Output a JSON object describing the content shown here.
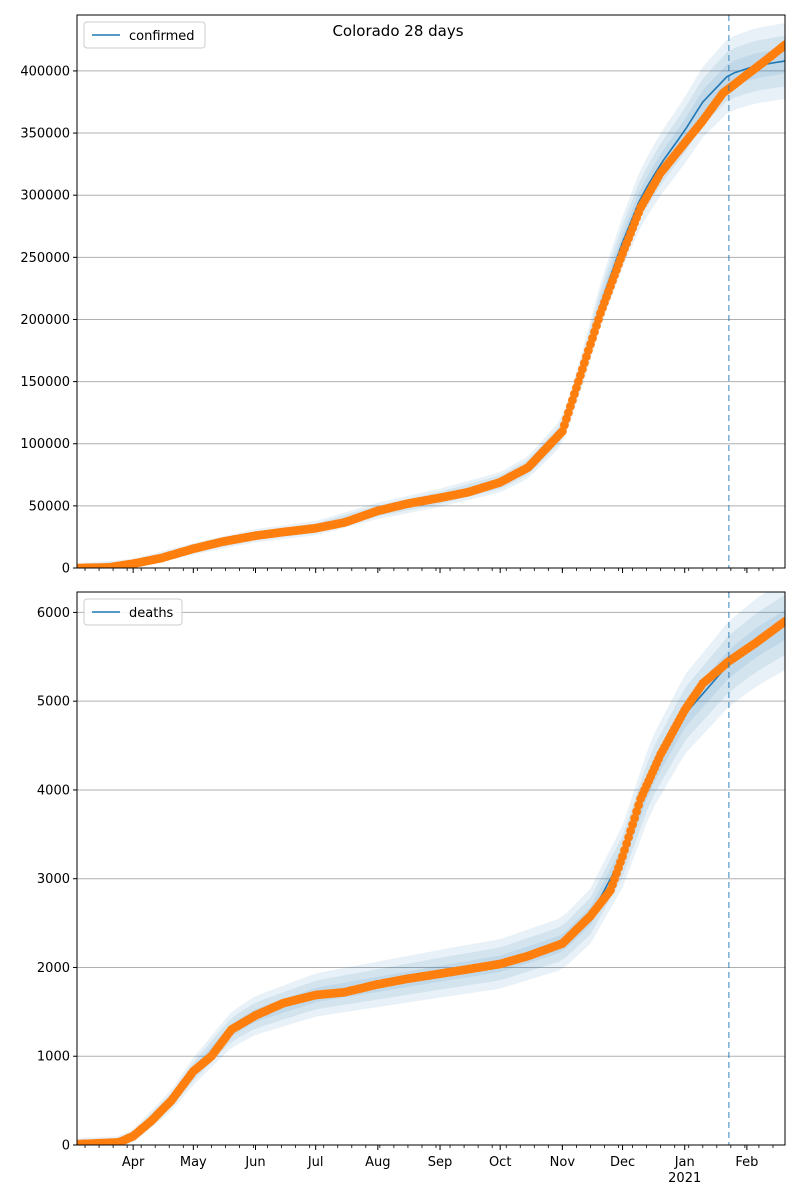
{
  "figure": {
    "title": "Colorado 28 days"
  },
  "chart_data": [
    {
      "type": "line",
      "legend": {
        "label": "confirmed",
        "placement": "upper-left"
      },
      "grid": "y",
      "ylim": [
        0,
        445000
      ],
      "yticks": [
        0,
        50000,
        100000,
        150000,
        200000,
        250000,
        300000,
        350000,
        400000
      ],
      "ytick_labels": [
        "0",
        "50000",
        "100000",
        "150000",
        "200000",
        "250000",
        "300000",
        "350000",
        "400000"
      ],
      "xlim": [
        "2020-03-04",
        "2021-02-20"
      ],
      "forecast_start": "2021-01-23",
      "observed": [
        {
          "x": "2020-03-05",
          "y": 0
        },
        {
          "x": "2020-03-20",
          "y": 500
        },
        {
          "x": "2020-04-01",
          "y": 3500
        },
        {
          "x": "2020-04-15",
          "y": 8000
        },
        {
          "x": "2020-05-01",
          "y": 15500
        },
        {
          "x": "2020-05-15",
          "y": 21000
        },
        {
          "x": "2020-06-01",
          "y": 26000
        },
        {
          "x": "2020-06-15",
          "y": 29000
        },
        {
          "x": "2020-07-01",
          "y": 32000
        },
        {
          "x": "2020-07-15",
          "y": 36500
        },
        {
          "x": "2020-08-01",
          "y": 46000
        },
        {
          "x": "2020-08-15",
          "y": 51500
        },
        {
          "x": "2020-09-01",
          "y": 56500
        },
        {
          "x": "2020-09-15",
          "y": 61000
        },
        {
          "x": "2020-10-01",
          "y": 69000
        },
        {
          "x": "2020-10-15",
          "y": 81000
        },
        {
          "x": "2020-11-01",
          "y": 110000
        },
        {
          "x": "2020-11-10",
          "y": 155000
        },
        {
          "x": "2020-11-20",
          "y": 205000
        },
        {
          "x": "2020-12-01",
          "y": 253000
        },
        {
          "x": "2020-12-10",
          "y": 290000
        },
        {
          "x": "2020-12-20",
          "y": 318000
        },
        {
          "x": "2021-01-01",
          "y": 342000
        },
        {
          "x": "2021-01-10",
          "y": 360000
        },
        {
          "x": "2021-01-20",
          "y": 382000
        },
        {
          "x": "2021-02-01",
          "y": 397000
        },
        {
          "x": "2021-02-10",
          "y": 408000
        },
        {
          "x": "2021-02-20",
          "y": 421000
        }
      ],
      "model": [
        {
          "x": "2020-03-04",
          "y": 0
        },
        {
          "x": "2020-04-01",
          "y": 3500
        },
        {
          "x": "2020-05-01",
          "y": 15500
        },
        {
          "x": "2020-06-01",
          "y": 26000
        },
        {
          "x": "2020-07-01",
          "y": 32000
        },
        {
          "x": "2020-08-01",
          "y": 46000
        },
        {
          "x": "2020-09-01",
          "y": 56500
        },
        {
          "x": "2020-10-01",
          "y": 69000
        },
        {
          "x": "2020-10-15",
          "y": 81000
        },
        {
          "x": "2020-11-01",
          "y": 110000
        },
        {
          "x": "2020-11-10",
          "y": 155000
        },
        {
          "x": "2020-11-20",
          "y": 212000
        },
        {
          "x": "2020-12-01",
          "y": 262000
        },
        {
          "x": "2020-12-10",
          "y": 298000
        },
        {
          "x": "2020-12-20",
          "y": 325000
        },
        {
          "x": "2021-01-01",
          "y": 352000
        },
        {
          "x": "2021-01-10",
          "y": 375000
        },
        {
          "x": "2021-01-23",
          "y": 397000
        },
        {
          "x": "2021-02-05",
          "y": 404000
        },
        {
          "x": "2021-02-20",
          "y": 408000
        }
      ]
    },
    {
      "type": "line",
      "legend": {
        "label": "deaths",
        "placement": "upper-left"
      },
      "grid": "y",
      "ylim": [
        0,
        6230
      ],
      "yticks": [
        0,
        1000,
        2000,
        3000,
        4000,
        5000,
        6000
      ],
      "ytick_labels": [
        "0",
        "1000",
        "2000",
        "3000",
        "4000",
        "5000",
        "6000"
      ],
      "xlim": [
        "2020-03-04",
        "2021-02-20"
      ],
      "forecast_start": "2021-01-23",
      "xtick_labels": [
        "Apr",
        "May",
        "Jun",
        "Jul",
        "Aug",
        "Sep",
        "Oct",
        "Nov",
        "Dec",
        "Jan\n2021",
        "Feb"
      ],
      "observed": [
        {
          "x": "2020-03-05",
          "y": 10
        },
        {
          "x": "2020-03-25",
          "y": 30
        },
        {
          "x": "2020-04-01",
          "y": 100
        },
        {
          "x": "2020-04-10",
          "y": 270
        },
        {
          "x": "2020-04-20",
          "y": 500
        },
        {
          "x": "2020-05-01",
          "y": 830
        },
        {
          "x": "2020-05-10",
          "y": 1000
        },
        {
          "x": "2020-05-20",
          "y": 1300
        },
        {
          "x": "2020-06-01",
          "y": 1460
        },
        {
          "x": "2020-06-15",
          "y": 1600
        },
        {
          "x": "2020-07-01",
          "y": 1690
        },
        {
          "x": "2020-07-15",
          "y": 1720
        },
        {
          "x": "2020-08-01",
          "y": 1810
        },
        {
          "x": "2020-08-15",
          "y": 1870
        },
        {
          "x": "2020-09-01",
          "y": 1930
        },
        {
          "x": "2020-09-15",
          "y": 1980
        },
        {
          "x": "2020-10-01",
          "y": 2040
        },
        {
          "x": "2020-10-15",
          "y": 2130
        },
        {
          "x": "2020-11-01",
          "y": 2270
        },
        {
          "x": "2020-11-15",
          "y": 2580
        },
        {
          "x": "2020-11-25",
          "y": 2870
        },
        {
          "x": "2020-12-01",
          "y": 3250
        },
        {
          "x": "2020-12-10",
          "y": 3900
        },
        {
          "x": "2020-12-20",
          "y": 4400
        },
        {
          "x": "2021-01-01",
          "y": 4900
        },
        {
          "x": "2021-01-10",
          "y": 5200
        },
        {
          "x": "2021-01-23",
          "y": 5450
        },
        {
          "x": "2021-02-05",
          "y": 5650
        },
        {
          "x": "2021-02-20",
          "y": 5900
        }
      ],
      "model": [
        {
          "x": "2020-03-04",
          "y": 10
        },
        {
          "x": "2020-03-25",
          "y": 30
        },
        {
          "x": "2020-04-01",
          "y": 100
        },
        {
          "x": "2020-04-20",
          "y": 500
        },
        {
          "x": "2020-05-01",
          "y": 830
        },
        {
          "x": "2020-05-20",
          "y": 1300
        },
        {
          "x": "2020-06-01",
          "y": 1460
        },
        {
          "x": "2020-07-01",
          "y": 1690
        },
        {
          "x": "2020-08-01",
          "y": 1810
        },
        {
          "x": "2020-09-01",
          "y": 1930
        },
        {
          "x": "2020-10-01",
          "y": 2040
        },
        {
          "x": "2020-11-01",
          "y": 2270
        },
        {
          "x": "2020-11-15",
          "y": 2580
        },
        {
          "x": "2020-12-01",
          "y": 3250
        },
        {
          "x": "2020-12-15",
          "y": 4150
        },
        {
          "x": "2021-01-01",
          "y": 4850
        },
        {
          "x": "2021-01-23",
          "y": 5420
        },
        {
          "x": "2021-02-05",
          "y": 5650
        },
        {
          "x": "2021-02-20",
          "y": 5860
        }
      ]
    }
  ],
  "colors": {
    "model_line": "#1f77b4",
    "observed_marker": "#ff7f0e",
    "band": "#1f77b4",
    "forecast_line": "#1f77b4",
    "grid": "#b0b0b0"
  }
}
